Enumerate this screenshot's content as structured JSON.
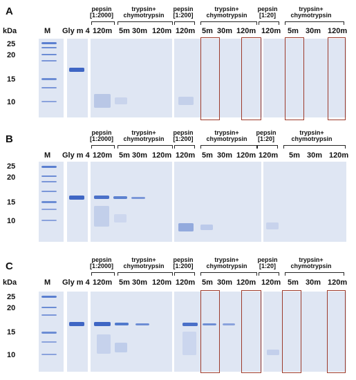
{
  "panels": [
    {
      "letter": "A",
      "kda_label": "kDa",
      "marker_label": "M",
      "markers": [
        "25",
        "20",
        "15",
        "10"
      ],
      "sample_label": "Gly m 4",
      "headers": [
        {
          "line1": "pepsin",
          "line2": "[1:2000]"
        },
        {
          "line1": "trypsin+",
          "line2": "chymotrypsin"
        },
        {
          "line1": "pepsin",
          "line2": "[1:200]"
        },
        {
          "line1": "trypsin+",
          "line2": "chymotrypsin"
        },
        {
          "line1": "pepsin",
          "line2": "[1:20]"
        },
        {
          "line1": "trypsin+",
          "line2": "chymotrypsin"
        }
      ],
      "lanes": [
        "120m",
        "5m",
        "30m",
        "120m",
        "120m",
        "5m",
        "30m",
        "120m",
        "120m",
        "5m",
        "30m",
        "120m"
      ]
    },
    {
      "letter": "B",
      "kda_label": "kDa",
      "marker_label": "M",
      "markers": [
        "25",
        "20",
        "15",
        "10"
      ],
      "sample_label": "Gly m 4",
      "headers": [
        {
          "line1": "pepsin",
          "line2": "[1:2000]"
        },
        {
          "line1": "trypsin+",
          "line2": "chymotrypsin"
        },
        {
          "line1": "pepsin",
          "line2": "[1:200]"
        },
        {
          "line1": "trypsin+",
          "line2": "chymotrypsin"
        },
        {
          "line1": "pepsin",
          "line2": "[1:20]"
        },
        {
          "line1": "trypsin+",
          "line2": "chymotrypsin"
        }
      ],
      "lanes": [
        "120m",
        "5m",
        "30m",
        "120m",
        "120m",
        "5m",
        "30m",
        "120m",
        "120m",
        "5m",
        "30m",
        "120m"
      ]
    },
    {
      "letter": "C",
      "kda_label": "kDa",
      "marker_label": "M",
      "markers": [
        "25",
        "20",
        "15",
        "10"
      ],
      "sample_label": "Gly m 4",
      "headers": [
        {
          "line1": "pepsin",
          "line2": "[1:2000]"
        },
        {
          "line1": "trypsin+",
          "line2": "chymotrypsin"
        },
        {
          "line1": "pepsin",
          "line2": "[1:200]"
        },
        {
          "line1": "trypsin+",
          "line2": "chymotrypsin"
        },
        {
          "line1": "pepsin",
          "line2": "[1:20]"
        },
        {
          "line1": "trypsin+",
          "line2": "chymotrypsin"
        }
      ],
      "lanes": [
        "120m",
        "5m",
        "30m",
        "120m",
        "120m",
        "5m",
        "30m",
        "120m",
        "120m",
        "5m",
        "30m",
        "120m"
      ]
    }
  ],
  "colors": {
    "gel_background": "#dfe6f3",
    "band": "#3f66c4",
    "highlight_box": "#9c3a2b"
  }
}
